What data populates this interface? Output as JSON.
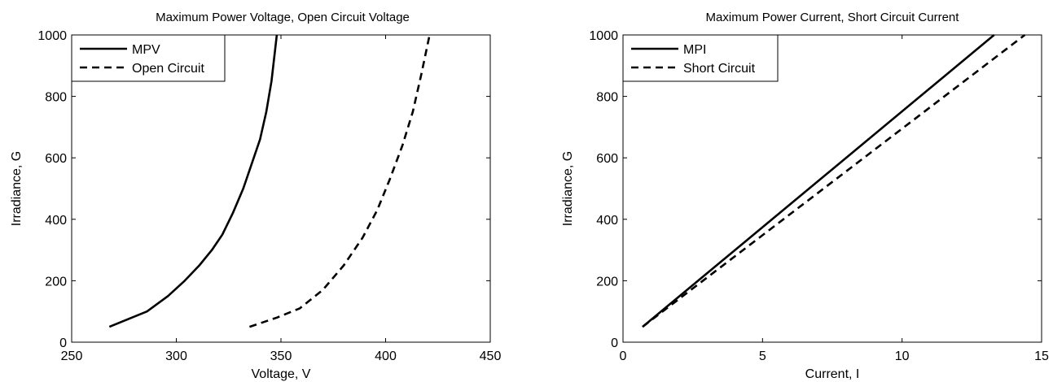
{
  "chart_data": [
    {
      "type": "line",
      "title": "Maximum Power Voltage, Open Circuit Voltage",
      "xlabel": "Voltage, V",
      "ylabel": "Irradiance, G",
      "xlim": [
        250,
        450
      ],
      "ylim": [
        0,
        1000
      ],
      "xticks": [
        250,
        300,
        350,
        400,
        450
      ],
      "yticks": [
        0,
        200,
        400,
        600,
        800,
        1000
      ],
      "grid": false,
      "legend_position": "top-left",
      "series": [
        {
          "name": "MPV",
          "style": "solid",
          "x": [
            268,
            286,
            296,
            304,
            311,
            317,
            322,
            327,
            332,
            336,
            340,
            343,
            345.5,
            348
          ],
          "y": [
            50,
            100,
            150,
            200,
            250,
            300,
            350,
            420,
            500,
            580,
            660,
            750,
            850,
            1000
          ]
        },
        {
          "name": "Open Circuit",
          "style": "dashed",
          "x": [
            335,
            348,
            359,
            370,
            380,
            389,
            396,
            402,
            408,
            413,
            417,
            421
          ],
          "y": [
            50,
            80,
            110,
            170,
            250,
            340,
            430,
            530,
            640,
            750,
            870,
            1000
          ]
        }
      ]
    },
    {
      "type": "line",
      "title": "Maximum Power Current, Short Circuit Current",
      "xlabel": "Current, I",
      "ylabel": "Irradiance, G",
      "xlim": [
        0,
        15
      ],
      "ylim": [
        0,
        1000
      ],
      "xticks": [
        0,
        5,
        10,
        15
      ],
      "yticks": [
        0,
        200,
        400,
        600,
        800,
        1000
      ],
      "grid": false,
      "legend_position": "top-left",
      "series": [
        {
          "name": "MPI",
          "style": "solid",
          "x": [
            0.7,
            13.3
          ],
          "y": [
            50,
            1000
          ]
        },
        {
          "name": "Short Circuit",
          "style": "dashed",
          "x": [
            0.7,
            14.4
          ],
          "y": [
            50,
            1000
          ]
        }
      ]
    }
  ]
}
